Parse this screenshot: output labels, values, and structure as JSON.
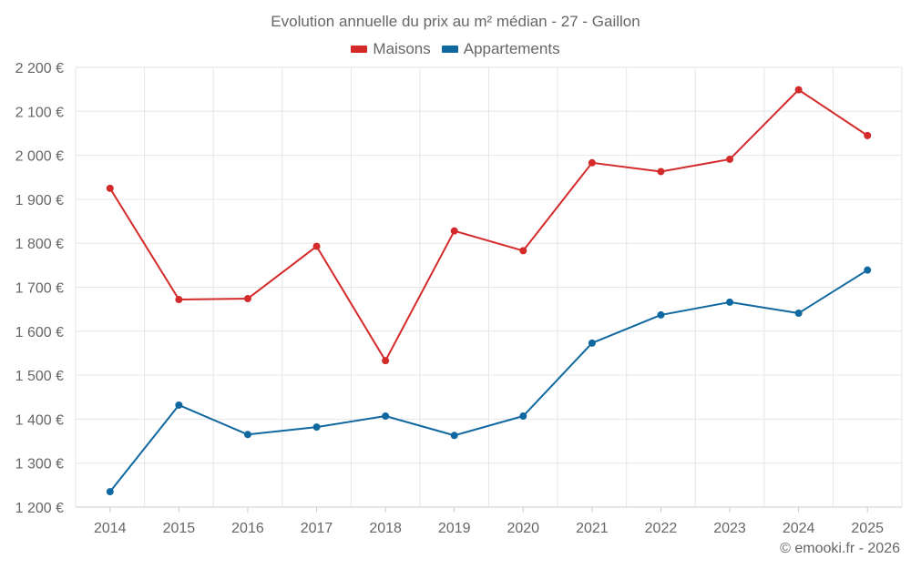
{
  "chart_data": {
    "type": "line",
    "title": "Evolution annuelle du prix au m² médian - 27 - Gaillon",
    "categories": [
      "2014",
      "2015",
      "2016",
      "2017",
      "2018",
      "2019",
      "2020",
      "2021",
      "2022",
      "2023",
      "2024",
      "2025"
    ],
    "series": [
      {
        "name": "Maisons",
        "color": "#d42a2a",
        "values": [
          1925,
          1672,
          1674,
          1793,
          1533,
          1828,
          1783,
          1983,
          1963,
          1991,
          2149,
          2045
        ]
      },
      {
        "name": "Appartements",
        "color": "#1068a0",
        "values": [
          1235,
          1432,
          1365,
          1382,
          1407,
          1363,
          1407,
          1573,
          1637,
          1666,
          1641,
          1739
        ]
      }
    ],
    "yticks": [
      "1 200 €",
      "1 300 €",
      "1 400 €",
      "1 500 €",
      "1 600 €",
      "1 700 €",
      "1 800 €",
      "1 900 €",
      "2 000 €",
      "2 100 €",
      "2 200 €"
    ],
    "ylim": [
      1200,
      2200
    ],
    "xlabel": "",
    "ylabel": "",
    "grid": true,
    "legend_position": "top-center"
  },
  "footer": {
    "credit": "© emooki.fr - 2026"
  }
}
